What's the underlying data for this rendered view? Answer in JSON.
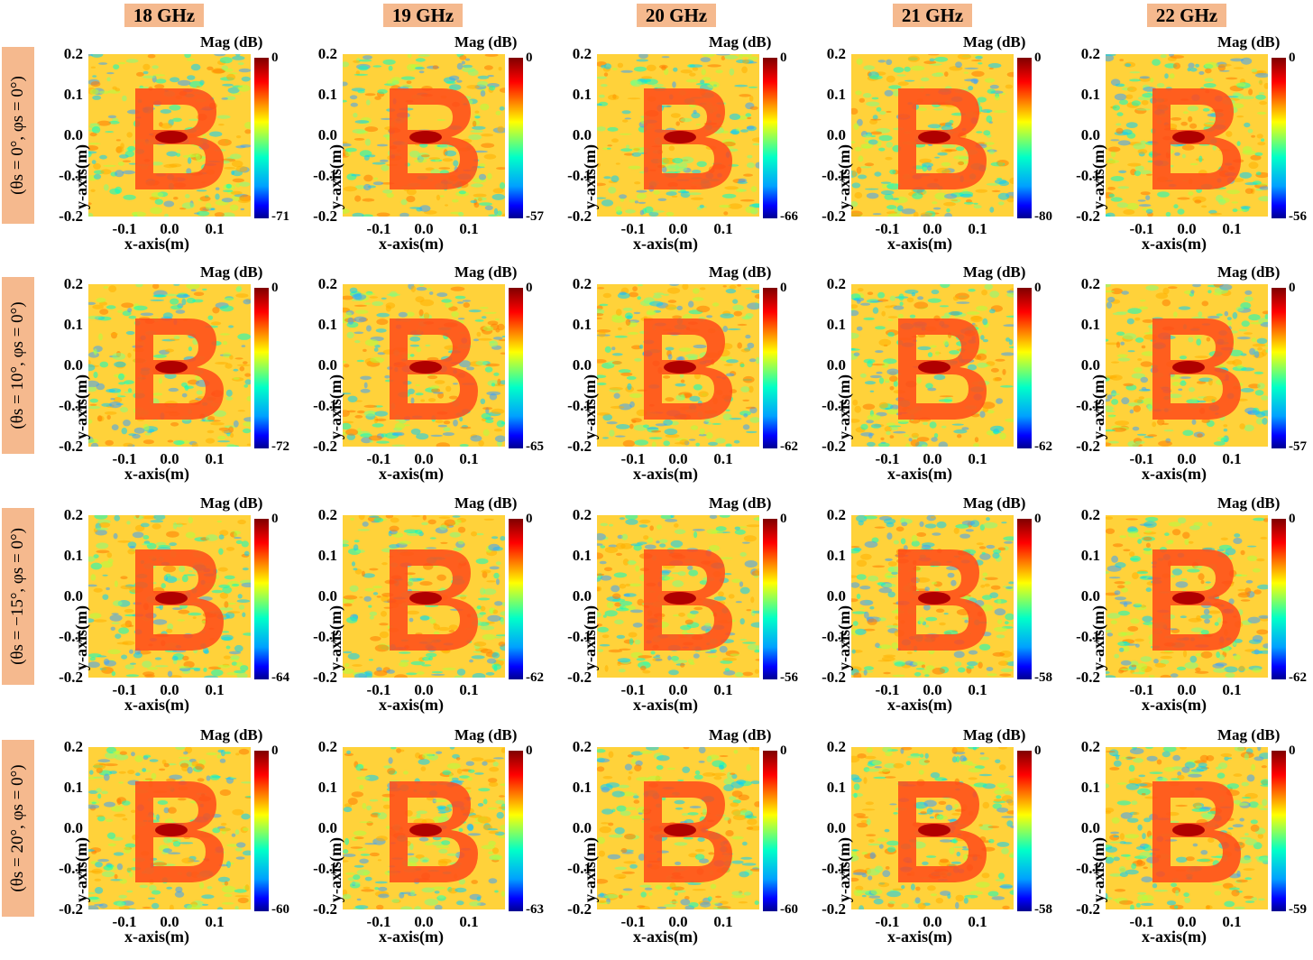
{
  "chart_data": {
    "type": "heatmap",
    "figure_description_labels": {
      "colorbar_title": "Mag (dB)",
      "xlabel": "x-axis(m)",
      "ylabel": "y-axis(m)",
      "xticks": [
        "-0.1",
        "0.0",
        "0.1"
      ],
      "yticks": [
        "0.2",
        "0.1",
        "0.0",
        "-0.1",
        "-0.2"
      ],
      "colorbar_top": "0"
    },
    "columns": [
      "18 GHz",
      "19 GHz",
      "20 GHz",
      "21 GHz",
      "22 GHz"
    ],
    "rows": [
      {
        "label": "(θs = 0°, φs = 0°)",
        "colorbar_min": [
          "-71",
          "-57",
          "-66",
          "-80",
          "-56"
        ]
      },
      {
        "label": "(θs = 10°, φs = 0°)",
        "colorbar_min": [
          "-72",
          "-65",
          "-62",
          "-62",
          "-57"
        ]
      },
      {
        "label": "(θs = −15°, φs = 0°)",
        "colorbar_min": [
          "-64",
          "-62",
          "-56",
          "-58",
          "-62"
        ]
      },
      {
        "label": "(θs = 20°, φs = 0°)",
        "colorbar_min": [
          "-60",
          "-63",
          "-60",
          "-58",
          "-59"
        ]
      }
    ],
    "colormap": [
      "#00008f",
      "#0000ff",
      "#00a0ff",
      "#00ffc8",
      "#ffff00",
      "#ff0000",
      "#7f0000"
    ],
    "xlim": [
      -0.18,
      0.18
    ],
    "ylim": [
      -0.2,
      0.2
    ],
    "image_content": "B"
  }
}
